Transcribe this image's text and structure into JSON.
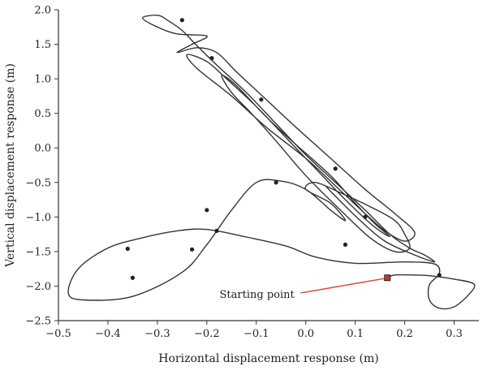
{
  "chart_data": {
    "type": "line",
    "title": "",
    "xlabel": "Horizontal displacement response (m)",
    "ylabel": "Vertical displacement response (m)",
    "xlim": [
      -0.5,
      0.35
    ],
    "ylim": [
      -2.5,
      2.0
    ],
    "xticks": [
      -0.5,
      -0.4,
      -0.3,
      -0.2,
      -0.1,
      0.0,
      0.1,
      0.2,
      0.3
    ],
    "xtick_labels": [
      "−0.5",
      "−0.4",
      "−0.3",
      "−0.2",
      "−0.1",
      "0.0",
      "0.1",
      "0.2",
      "0.3"
    ],
    "yticks": [
      -2.5,
      -2.0,
      -1.5,
      -1.0,
      -0.5,
      0.0,
      0.5,
      1.0,
      1.5,
      2.0
    ],
    "ytick_labels": [
      "−2.5",
      "−2.0",
      "−1.5",
      "−1.0",
      "−0.5",
      "0.0",
      "0.5",
      "1.0",
      "1.5",
      "2.0"
    ],
    "grid": false,
    "legend": "none",
    "line_color": "#333333",
    "marker_color": "#c0392b",
    "annotation_color": "#e04040",
    "annotation": {
      "text": "Starting point",
      "point": [
        0.165,
        -1.88
      ],
      "text_at": [
        -0.02,
        -2.1
      ]
    },
    "series": [
      {
        "start": [
          0.165,
          -1.88
        ],
        "points": [
          [
            0.165,
            -1.88
          ],
          [
            0.18,
            -1.84
          ],
          [
            0.22,
            -1.84
          ],
          [
            0.25,
            -1.85
          ],
          [
            0.3,
            -1.9
          ],
          [
            0.34,
            -1.97
          ],
          [
            0.33,
            -2.12
          ],
          [
            0.3,
            -2.3
          ],
          [
            0.27,
            -2.32
          ],
          [
            0.25,
            -2.2
          ],
          [
            0.25,
            -1.98
          ],
          [
            0.27,
            -1.82
          ],
          [
            0.26,
            -1.68
          ],
          [
            0.2,
            -1.65
          ],
          [
            0.1,
            -1.67
          ],
          [
            0.02,
            -1.58
          ],
          [
            -0.04,
            -1.42
          ],
          [
            -0.12,
            -1.29
          ],
          [
            -0.2,
            -1.18
          ],
          [
            -0.26,
            -1.2
          ],
          [
            -0.33,
            -1.3
          ],
          [
            -0.4,
            -1.45
          ],
          [
            -0.46,
            -1.75
          ],
          [
            -0.48,
            -2.1
          ],
          [
            -0.45,
            -2.2
          ],
          [
            -0.35,
            -2.15
          ],
          [
            -0.25,
            -1.8
          ],
          [
            -0.2,
            -1.4
          ],
          [
            -0.15,
            -0.9
          ],
          [
            -0.1,
            -0.5
          ],
          [
            -0.05,
            -0.48
          ],
          [
            0.0,
            -0.6
          ],
          [
            0.05,
            -0.9
          ],
          [
            0.08,
            -1.05
          ],
          [
            0.05,
            -0.8
          ],
          [
            0.0,
            -0.6
          ],
          [
            0.02,
            -0.5
          ],
          [
            0.07,
            -0.65
          ],
          [
            0.13,
            -0.85
          ],
          [
            0.18,
            -1.05
          ],
          [
            0.2,
            -1.25
          ],
          [
            0.21,
            -1.45
          ],
          [
            0.18,
            -1.5
          ],
          [
            0.13,
            -1.3
          ],
          [
            0.07,
            -0.9
          ],
          [
            0.0,
            -0.4
          ],
          [
            -0.06,
            0.1
          ],
          [
            -0.11,
            0.5
          ],
          [
            -0.15,
            0.8
          ],
          [
            -0.17,
            1.05
          ],
          [
            -0.14,
            0.9
          ],
          [
            -0.08,
            0.45
          ],
          [
            -0.02,
            0.05
          ],
          [
            0.05,
            -0.4
          ],
          [
            0.1,
            -0.8
          ],
          [
            0.14,
            -1.1
          ],
          [
            0.17,
            -1.28
          ],
          [
            0.14,
            -1.15
          ],
          [
            0.08,
            -0.75
          ],
          [
            0.02,
            -0.3
          ],
          [
            -0.04,
            0.15
          ],
          [
            -0.1,
            0.6
          ],
          [
            -0.16,
            1.0
          ],
          [
            -0.2,
            1.25
          ],
          [
            -0.24,
            1.35
          ],
          [
            -0.22,
            1.15
          ],
          [
            -0.15,
            0.75
          ],
          [
            -0.08,
            0.3
          ],
          [
            0.0,
            -0.15
          ],
          [
            0.06,
            -0.55
          ],
          [
            0.12,
            -0.95
          ],
          [
            0.16,
            -1.2
          ],
          [
            0.2,
            -1.35
          ],
          [
            0.22,
            -1.22
          ],
          [
            0.18,
            -0.95
          ],
          [
            0.12,
            -0.6
          ],
          [
            0.05,
            -0.15
          ],
          [
            -0.02,
            0.3
          ],
          [
            -0.08,
            0.7
          ],
          [
            -0.14,
            1.1
          ],
          [
            -0.18,
            1.38
          ],
          [
            -0.22,
            1.45
          ],
          [
            -0.26,
            1.38
          ],
          [
            -0.23,
            1.5
          ],
          [
            -0.2,
            1.62
          ],
          [
            -0.26,
            1.65
          ],
          [
            -0.3,
            1.75
          ],
          [
            -0.33,
            1.88
          ],
          [
            -0.3,
            1.92
          ],
          [
            -0.28,
            1.85
          ],
          [
            -0.25,
            1.7
          ],
          [
            -0.22,
            1.48
          ],
          [
            -0.18,
            1.2
          ],
          [
            -0.12,
            0.8
          ],
          [
            -0.06,
            0.35
          ],
          [
            0.0,
            -0.1
          ],
          [
            0.06,
            -0.5
          ],
          [
            0.12,
            -0.9
          ],
          [
            0.17,
            -1.25
          ],
          [
            0.21,
            -1.45
          ],
          [
            0.24,
            -1.55
          ],
          [
            0.26,
            -1.65
          ],
          [
            0.22,
            -1.55
          ],
          [
            0.16,
            -1.35
          ],
          [
            0.11,
            -1.05
          ],
          [
            0.06,
            -0.7
          ],
          [
            0.04,
            -0.55
          ]
        ]
      }
    ],
    "arrows": [
      [
        -0.19,
        1.3
      ],
      [
        -0.09,
        0.7
      ],
      [
        0.06,
        -0.3
      ],
      [
        0.12,
        -1.0
      ],
      [
        0.08,
        -1.4
      ],
      [
        -0.18,
        -1.2
      ],
      [
        -0.36,
        -1.46
      ],
      [
        -0.35,
        -1.88
      ],
      [
        -0.23,
        -1.47
      ],
      [
        -0.2,
        -0.9
      ],
      [
        -0.06,
        -0.5
      ],
      [
        0.27,
        -1.84
      ],
      [
        -0.25,
        1.85
      ]
    ]
  }
}
